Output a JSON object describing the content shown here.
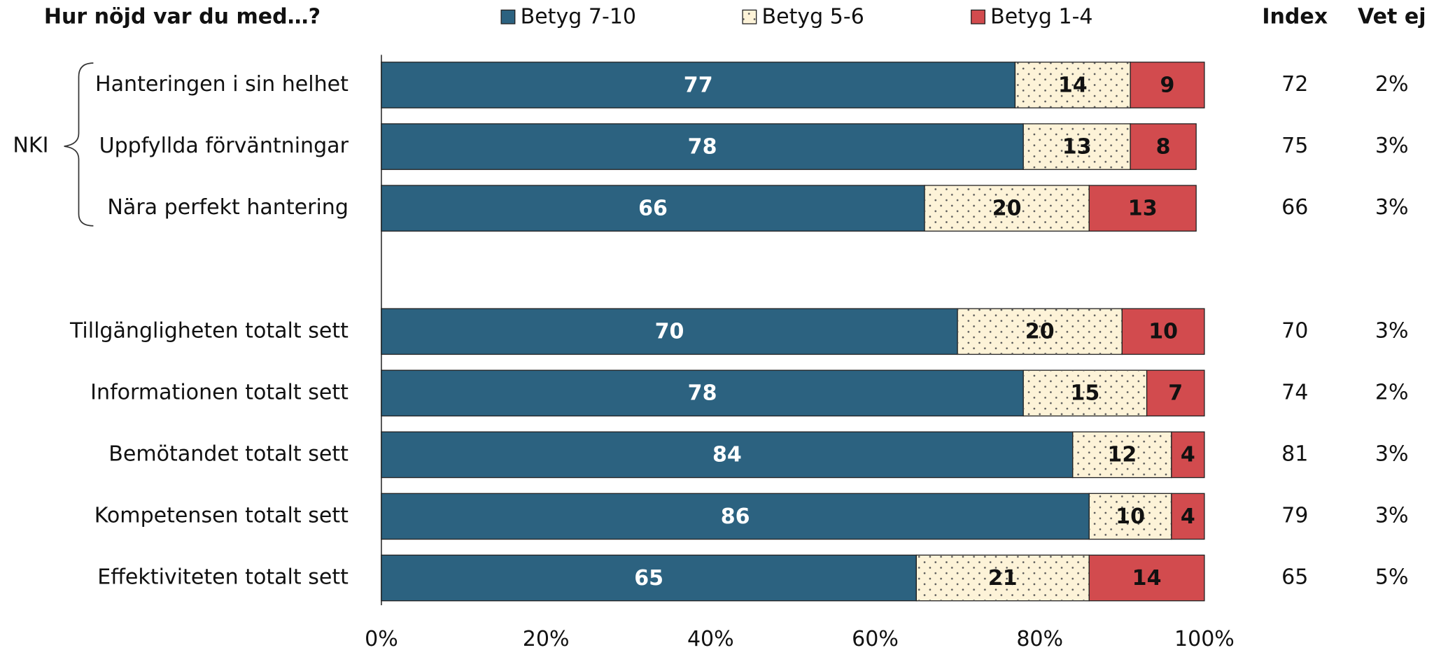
{
  "chart_data": {
    "type": "stacked-bar-horizontal",
    "title": "Hur nöjd var du med…?",
    "group_label": "NKI",
    "categories": [
      "Hanteringen i sin helhet",
      "Uppfyllda förväntningar",
      "Nära perfekt hantering",
      null,
      "Tillgängligheten totalt sett",
      "Informationen totalt sett",
      "Bemötandet totalt sett",
      "Kompetensen totalt sett",
      "Effektiviteten totalt sett"
    ],
    "series": [
      {
        "name": "Betyg 7-10",
        "color": "#2c6280",
        "label_color": "#ffffff",
        "values": [
          77,
          78,
          66,
          null,
          70,
          78,
          84,
          86,
          65
        ]
      },
      {
        "name": "Betyg 5-6",
        "color": "#fdf3d8",
        "label_color": "#111111",
        "pattern": "dots",
        "values": [
          14,
          13,
          20,
          null,
          20,
          15,
          12,
          10,
          21
        ]
      },
      {
        "name": "Betyg 1-4",
        "color": "#d24b4e",
        "label_color": "#111111",
        "values": [
          9,
          8,
          13,
          null,
          10,
          7,
          4,
          4,
          14
        ]
      }
    ],
    "xlim": [
      0,
      100
    ],
    "xticks": [
      {
        "value": 0,
        "label": "0%"
      },
      {
        "value": 20,
        "label": "20%"
      },
      {
        "value": 40,
        "label": "40%"
      },
      {
        "value": 60,
        "label": "60%"
      },
      {
        "value": 80,
        "label": "80%"
      },
      {
        "value": 100,
        "label": "100%"
      }
    ],
    "extra_columns": [
      {
        "name": "Index",
        "values": [
          72,
          75,
          66,
          null,
          70,
          74,
          81,
          79,
          65
        ]
      },
      {
        "name": "Vet ej",
        "values": [
          "2%",
          "3%",
          "3%",
          null,
          "3%",
          "2%",
          "3%",
          "3%",
          "5%"
        ]
      }
    ]
  }
}
